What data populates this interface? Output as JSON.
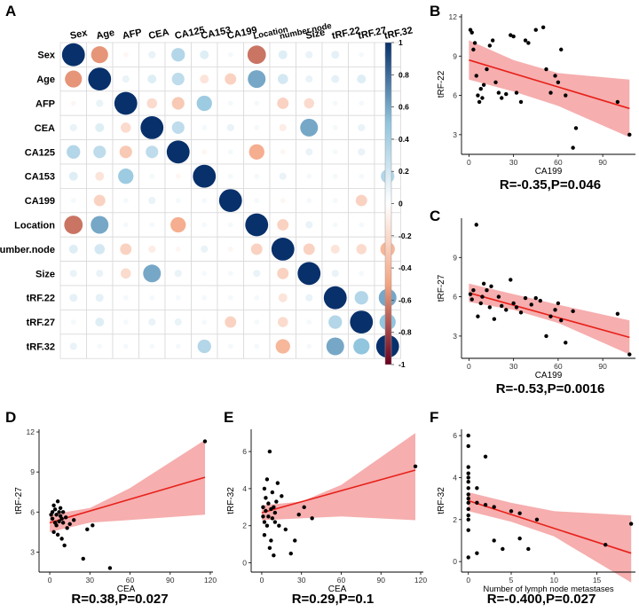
{
  "panels": {
    "A": {
      "letter": "A"
    },
    "B": {
      "letter": "B"
    },
    "C": {
      "letter": "C"
    },
    "D": {
      "letter": "D"
    },
    "E": {
      "letter": "E"
    },
    "F": {
      "letter": "F"
    }
  },
  "chart_data": [
    {
      "id": "A",
      "type": "heatmap",
      "title": "",
      "row_labels": [
        "Sex",
        "Age",
        "AFP",
        "CEA",
        "CA125",
        "CA153",
        "CA199",
        "Location",
        "Number.node",
        "Size",
        "tRF.22",
        "tRF.27",
        "tRF.32"
      ],
      "col_labels": [
        "Sex",
        "Age",
        "AFP",
        "CEA",
        "CA125",
        "CA153",
        "CA199",
        "Location",
        "number.node",
        "Size",
        "tRF.22",
        "tRF.27",
        "tRF.32"
      ],
      "matrix": [
        [
          1,
          -0.55,
          -0.05,
          0.1,
          0.35,
          0.15,
          0.05,
          -0.65,
          0.15,
          0.1,
          0.12,
          0.05,
          0.1
        ],
        [
          -0.55,
          1,
          0.1,
          0.15,
          0.3,
          -0.15,
          -0.25,
          0.6,
          0.2,
          0.1,
          0.12,
          0.15,
          0.05
        ],
        [
          -0.05,
          0.1,
          1,
          -0.2,
          -0.3,
          0.45,
          0.05,
          0.05,
          -0.25,
          -0.2,
          0.05,
          0.05,
          0.05
        ],
        [
          0.1,
          0.15,
          -0.2,
          1,
          0.3,
          0.05,
          0.1,
          0.05,
          -0.1,
          0.6,
          0.05,
          0.1,
          0.05
        ],
        [
          0.35,
          0.3,
          -0.3,
          0.3,
          1,
          -0.05,
          0.05,
          -0.45,
          -0.05,
          0.1,
          0.05,
          0.1,
          0.05
        ],
        [
          0.15,
          -0.15,
          0.45,
          0.05,
          -0.05,
          1,
          0.05,
          0.05,
          0.1,
          0.05,
          0.05,
          0.05,
          0.35
        ],
        [
          0.05,
          -0.25,
          0.05,
          0.1,
          0.05,
          0.05,
          1,
          0.05,
          -0.05,
          0.05,
          0.05,
          -0.25,
          0.05
        ],
        [
          -0.65,
          0.6,
          0.05,
          0.05,
          -0.45,
          0.05,
          0.05,
          1,
          -0.25,
          0.1,
          0.05,
          0.05,
          0.05
        ],
        [
          0.15,
          0.2,
          -0.25,
          -0.1,
          -0.05,
          0.1,
          -0.05,
          -0.25,
          1,
          -0.25,
          -0.15,
          -0.2,
          -0.4
        ],
        [
          0.1,
          0.1,
          -0.2,
          0.6,
          0.1,
          0.05,
          0.05,
          0.1,
          -0.25,
          1,
          0.1,
          0.05,
          0.05
        ],
        [
          0.12,
          0.12,
          0.05,
          0.05,
          0.05,
          0.05,
          0.05,
          0.05,
          -0.15,
          0.1,
          1,
          0.35,
          0.6
        ],
        [
          0.05,
          0.15,
          0.05,
          0.1,
          0.1,
          0.05,
          -0.25,
          0.05,
          -0.2,
          0.05,
          0.35,
          1,
          0.5
        ],
        [
          0.1,
          0.05,
          0.05,
          0.05,
          0.05,
          0.35,
          0.05,
          0.05,
          -0.4,
          0.05,
          0.6,
          0.5,
          1
        ]
      ],
      "colorbar_ticks": [
        1,
        0.8,
        0.6,
        0.4,
        0.2,
        0,
        -0.2,
        -0.4,
        -0.6,
        -0.8,
        -1
      ],
      "colors": {
        "positive": "#08306b",
        "negative": "#67001f",
        "neutral": "#f7f7f7"
      }
    },
    {
      "id": "B",
      "type": "scatter",
      "xlabel": "CA199",
      "ylabel": "tRF-22",
      "xlim": [
        -5,
        112
      ],
      "ylim": [
        1.5,
        12.2
      ],
      "xticks": [
        0,
        30,
        60,
        90
      ],
      "yticks": [
        3,
        6,
        9,
        12
      ],
      "points": [
        [
          1,
          11
        ],
        [
          2,
          10.8
        ],
        [
          3,
          9.5
        ],
        [
          4,
          10
        ],
        [
          5,
          7.5
        ],
        [
          6,
          6
        ],
        [
          7,
          5.5
        ],
        [
          8,
          6.5
        ],
        [
          9,
          5.8
        ],
        [
          10,
          6.8
        ],
        [
          12,
          8
        ],
        [
          14,
          9.8
        ],
        [
          16,
          10.2
        ],
        [
          18,
          7
        ],
        [
          20,
          6.2
        ],
        [
          22,
          5.8
        ],
        [
          25,
          6.1
        ],
        [
          28,
          10.6
        ],
        [
          30,
          10.5
        ],
        [
          32,
          6.2
        ],
        [
          35,
          5.5
        ],
        [
          38,
          10.2
        ],
        [
          40,
          10
        ],
        [
          45,
          11
        ],
        [
          50,
          11.2
        ],
        [
          52,
          8
        ],
        [
          55,
          6.2
        ],
        [
          58,
          7.5
        ],
        [
          60,
          7
        ],
        [
          62,
          9.5
        ],
        [
          65,
          6
        ],
        [
          70,
          2
        ],
        [
          72,
          3.5
        ],
        [
          100,
          5.5
        ],
        [
          108,
          3
        ]
      ],
      "fit": {
        "x": [
          0,
          108
        ],
        "y": [
          8.7,
          5.0
        ]
      },
      "band": {
        "x": [
          0,
          30,
          60,
          108
        ],
        "upper": [
          10.2,
          8.7,
          7.7,
          7.2
        ],
        "lower": [
          7.2,
          6.3,
          5.2,
          2.8
        ]
      },
      "stat": "R=-0.35,P=0.046"
    },
    {
      "id": "C",
      "type": "scatter",
      "xlabel": "CA199",
      "ylabel": "tRF-27",
      "xlim": [
        -5,
        112
      ],
      "ylim": [
        1.3,
        12.0
      ],
      "xticks": [
        0,
        30,
        60,
        90
      ],
      "yticks": [
        3,
        6,
        9
      ],
      "points": [
        [
          1,
          6.2
        ],
        [
          2,
          5.8
        ],
        [
          3,
          6.5
        ],
        [
          5,
          11.5
        ],
        [
          6,
          4.5
        ],
        [
          8,
          5.5
        ],
        [
          9,
          6
        ],
        [
          10,
          7
        ],
        [
          12,
          6.5
        ],
        [
          14,
          5.2
        ],
        [
          15,
          6.8
        ],
        [
          17,
          4.3
        ],
        [
          20,
          6
        ],
        [
          22,
          5.3
        ],
        [
          25,
          5
        ],
        [
          28,
          7.3
        ],
        [
          30,
          5.5
        ],
        [
          32,
          5.2
        ],
        [
          35,
          4.8
        ],
        [
          38,
          5.9
        ],
        [
          42,
          5.4
        ],
        [
          45,
          5.9
        ],
        [
          48,
          5.7
        ],
        [
          52,
          3
        ],
        [
          55,
          4.5
        ],
        [
          58,
          5
        ],
        [
          60,
          5.5
        ],
        [
          62,
          4.2
        ],
        [
          65,
          2.5
        ],
        [
          70,
          4.9
        ],
        [
          100,
          4.7
        ],
        [
          108,
          1.6
        ]
      ],
      "fit": {
        "x": [
          0,
          108
        ],
        "y": [
          6.3,
          2.9
        ]
      },
      "band": {
        "x": [
          0,
          30,
          60,
          108
        ],
        "upper": [
          7.0,
          6.2,
          5.4,
          4.2
        ],
        "lower": [
          5.6,
          5.0,
          4.0,
          1.6
        ]
      },
      "stat": "R=-0.53,P=0.0016"
    },
    {
      "id": "D",
      "type": "scatter",
      "xlabel": "CEA",
      "ylabel": "tRF-27",
      "xlim": [
        -8,
        122
      ],
      "ylim": [
        1.5,
        12.2
      ],
      "xticks": [
        0,
        30,
        60,
        90,
        120
      ],
      "yticks": [
        3,
        6,
        9,
        12
      ],
      "points": [
        [
          1,
          5.8
        ],
        [
          2,
          6
        ],
        [
          2,
          5.5
        ],
        [
          3,
          4.5
        ],
        [
          3,
          6.5
        ],
        [
          4,
          5.2
        ],
        [
          4,
          6.2
        ],
        [
          5,
          5
        ],
        [
          5,
          5.8
        ],
        [
          6,
          6.8
        ],
        [
          6,
          4.3
        ],
        [
          7,
          6
        ],
        [
          7,
          5.3
        ],
        [
          8,
          5.7
        ],
        [
          8,
          6.3
        ],
        [
          9,
          4
        ],
        [
          9,
          5.5
        ],
        [
          10,
          5.2
        ],
        [
          10,
          6
        ],
        [
          11,
          3.5
        ],
        [
          12,
          5.6
        ],
        [
          13,
          4.8
        ],
        [
          15,
          5.1
        ],
        [
          18,
          5.4
        ],
        [
          25,
          2.5
        ],
        [
          28,
          4.7
        ],
        [
          32,
          5
        ],
        [
          45,
          1.8
        ],
        [
          116,
          11.3
        ]
      ],
      "fit": {
        "x": [
          0,
          116
        ],
        "y": [
          5.2,
          8.6
        ]
      },
      "band": {
        "x": [
          0,
          30,
          60,
          116
        ],
        "upper": [
          5.8,
          6.3,
          7.8,
          11.4
        ],
        "lower": [
          4.5,
          5.2,
          5.4,
          5.8
        ]
      },
      "stat": "R=0.38,P=0.027"
    },
    {
      "id": "E",
      "type": "scatter",
      "xlabel": "CEA",
      "ylabel": "tRF-32",
      "xlim": [
        -8,
        122
      ],
      "ylim": [
        -0.5,
        7.2
      ],
      "xticks": [
        0,
        30,
        60,
        90,
        120
      ],
      "yticks": [
        0,
        2,
        4,
        6
      ],
      "points": [
        [
          1,
          2.5
        ],
        [
          1,
          3
        ],
        [
          2,
          2.2
        ],
        [
          2,
          4
        ],
        [
          2,
          1.5
        ],
        [
          3,
          2.8
        ],
        [
          3,
          3.5
        ],
        [
          4,
          2
        ],
        [
          4,
          4.5
        ],
        [
          5,
          3.2
        ],
        [
          5,
          2.5
        ],
        [
          6,
          0.8
        ],
        [
          6,
          6
        ],
        [
          7,
          2.9
        ],
        [
          7,
          1.2
        ],
        [
          8,
          3.8
        ],
        [
          8,
          2.4
        ],
        [
          9,
          0.4
        ],
        [
          9,
          3
        ],
        [
          10,
          2.7
        ],
        [
          10,
          2.2
        ],
        [
          11,
          3.3
        ],
        [
          12,
          4.3
        ],
        [
          13,
          2
        ],
        [
          15,
          3.6
        ],
        [
          18,
          1.8
        ],
        [
          22,
          0.5
        ],
        [
          25,
          1.2
        ],
        [
          28,
          2.6
        ],
        [
          32,
          3
        ],
        [
          38,
          2.4
        ],
        [
          116,
          5.2
        ]
      ],
      "fit": {
        "x": [
          0,
          116
        ],
        "y": [
          2.7,
          5.0
        ]
      },
      "band": {
        "x": [
          0,
          30,
          60,
          116
        ],
        "upper": [
          3.1,
          3.3,
          4.2,
          7.0
        ],
        "lower": [
          2.3,
          2.4,
          2.5,
          2.3
        ]
      },
      "stat": "R=0.29,P=0.1"
    },
    {
      "id": "F",
      "type": "scatter",
      "xlabel": "Number of lymph node metastases",
      "ylabel": "tRF-32",
      "xlim": [
        -0.8,
        19.5
      ],
      "ylim": [
        -0.5,
        6.3
      ],
      "xticks": [
        0,
        5,
        10,
        15
      ],
      "yticks": [
        0,
        2,
        4,
        6
      ],
      "points": [
        [
          0,
          6
        ],
        [
          0,
          5.5
        ],
        [
          0,
          4.5
        ],
        [
          0,
          4.2
        ],
        [
          0,
          4
        ],
        [
          0,
          3.8
        ],
        [
          0,
          3.5
        ],
        [
          0,
          3.2
        ],
        [
          0,
          3
        ],
        [
          0,
          2.8
        ],
        [
          0,
          2.5
        ],
        [
          0,
          2.2
        ],
        [
          0,
          2
        ],
        [
          0,
          1.5
        ],
        [
          0,
          0.2
        ],
        [
          1,
          2.8
        ],
        [
          1,
          3.5
        ],
        [
          1,
          0.4
        ],
        [
          2,
          2.7
        ],
        [
          2,
          5
        ],
        [
          3,
          2.6
        ],
        [
          3,
          1
        ],
        [
          4,
          0.6
        ],
        [
          5,
          2.4
        ],
        [
          6,
          1.1
        ],
        [
          6,
          2.3
        ],
        [
          7,
          0.6
        ],
        [
          8,
          2
        ],
        [
          16,
          0.8
        ],
        [
          19,
          1.8
        ]
      ],
      "fit": {
        "x": [
          0,
          19
        ],
        "y": [
          2.9,
          0.4
        ]
      },
      "band": {
        "x": [
          0,
          5,
          10,
          19
        ],
        "upper": [
          3.3,
          2.8,
          2.4,
          2.2
        ],
        "lower": [
          2.4,
          1.9,
          1.2,
          -1.0
        ]
      },
      "stat": "R=-0.400,P=0.027"
    }
  ]
}
